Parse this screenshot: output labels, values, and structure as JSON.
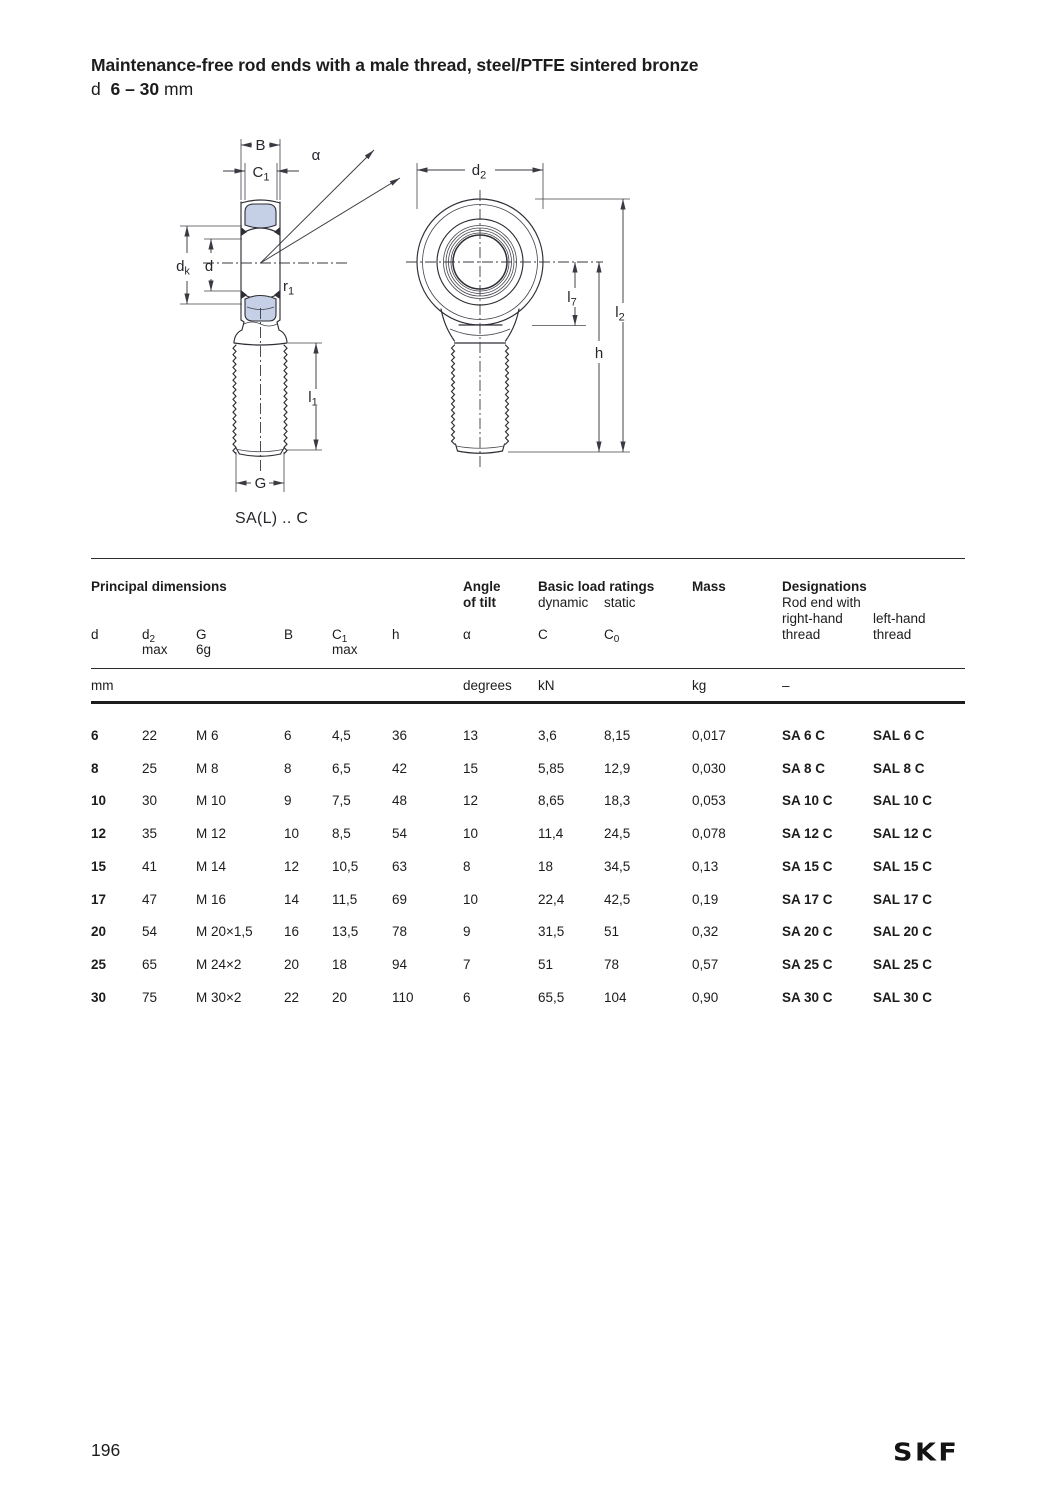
{
  "page": {
    "title": "Maintenance-free rod ends with a male thread, steel/PTFE sintered bronze",
    "subtitle_prefix": "d",
    "subtitle_range": "6 – 30",
    "subtitle_unit": "mm",
    "page_number": "196",
    "brand": "SKF"
  },
  "drawing": {
    "caption": "SA(L) .. C",
    "fill_color": "#c5d0e7",
    "line_color": "#2e2e36",
    "labels": {
      "B": "B",
      "C1_base": "C",
      "C1_sub": "1",
      "alpha": "α",
      "dk_base": "d",
      "dk_sub": "k",
      "d": "d",
      "r1_base": "r",
      "r1_sub": "1",
      "l1_base": "l",
      "l1_sub": "1",
      "G": "G",
      "d2_base": "d",
      "d2_sub": "2",
      "l7_base": "l",
      "l7_sub": "7",
      "l2_base": "l",
      "l2_sub": "2",
      "h": "h"
    }
  },
  "table": {
    "group_headers": {
      "principal": "Principal dimensions",
      "angle1": "Angle",
      "angle2": "of tilt",
      "load": "Basic load ratings",
      "load_dynamic": "dynamic",
      "load_static": "static",
      "mass": "Mass",
      "designations": "Designations",
      "designations_note": "Rod end with",
      "right1": "right-hand",
      "right2": "thread",
      "left1": "left-hand",
      "left2": "thread"
    },
    "symbols": {
      "d": "d",
      "d2_base": "d",
      "d2_sub": "2",
      "d2_qual": "max",
      "g_base": "G",
      "g_qual": "6g",
      "b": "B",
      "c1_base": "C",
      "c1_sub": "1",
      "c1_qual": "max",
      "h": "h",
      "alpha": "α",
      "c": "C",
      "c0_base": "C",
      "c0_sub": "0"
    },
    "units": {
      "mm": "mm",
      "degrees": "degrees",
      "kn": "kN",
      "kg": "kg",
      "dash": "–"
    },
    "rows": [
      [
        "6",
        "22",
        "M 6",
        "6",
        "4,5",
        "36",
        "13",
        "3,6",
        "8,15",
        "0,017",
        "SA 6 C",
        "SAL 6 C"
      ],
      [
        "8",
        "25",
        "M 8",
        "8",
        "6,5",
        "42",
        "15",
        "5,85",
        "12,9",
        "0,030",
        "SA 8 C",
        "SAL 8 C"
      ],
      [
        "10",
        "30",
        "M 10",
        "9",
        "7,5",
        "48",
        "12",
        "8,65",
        "18,3",
        "0,053",
        "SA 10 C",
        "SAL 10 C"
      ],
      [
        "12",
        "35",
        "M 12",
        "10",
        "8,5",
        "54",
        "10",
        "11,4",
        "24,5",
        "0,078",
        "SA 12 C",
        "SAL 12 C"
      ],
      [
        "15",
        "41",
        "M 14",
        "12",
        "10,5",
        "63",
        "8",
        "18",
        "34,5",
        "0,13",
        "SA 15 C",
        "SAL 15 C"
      ],
      [
        "17",
        "47",
        "M 16",
        "14",
        "11,5",
        "69",
        "10",
        "22,4",
        "42,5",
        "0,19",
        "SA 17 C",
        "SAL 17 C"
      ],
      [
        "20",
        "54",
        "M 20×1,5",
        "16",
        "13,5",
        "78",
        "9",
        "31,5",
        "51",
        "0,32",
        "SA 20 C",
        "SAL 20 C"
      ],
      [
        "25",
        "65",
        "M 24×2",
        "20",
        "18",
        "94",
        "7",
        "51",
        "78",
        "0,57",
        "SA 25 C",
        "SAL 25 C"
      ],
      [
        "30",
        "75",
        "M 30×2",
        "22",
        "20",
        "110",
        "6",
        "65,5",
        "104",
        "0,90",
        "SA 30 C",
        "SAL 30 C"
      ]
    ]
  }
}
